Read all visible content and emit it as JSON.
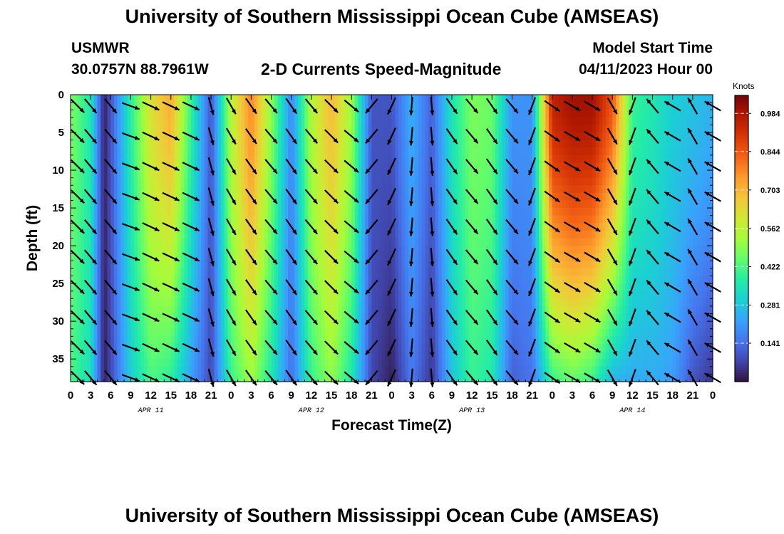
{
  "page": {
    "title": "University of Southern Mississippi Ocean Cube (AMSEAS)",
    "station_name": "USMWR",
    "station_coords": "30.0757N  88.7961W",
    "plot_title": "2-D Currents Speed-Magnitude",
    "model_start_label": "Model Start Time",
    "model_start_value": "04/11/2023 Hour 00",
    "footer_title": "University of Southern Mississippi Ocean Cube (AMSEAS)"
  },
  "chart_data": {
    "type": "heatmap",
    "title": "2-D Currents Speed-Magnitude",
    "xlabel": "Forecast Time(Z)",
    "ylabel": "Depth (ft)",
    "x_unit": "hours since 04/11/2023 00Z",
    "xlim": [
      0,
      96
    ],
    "ylim": [
      0,
      38
    ],
    "y_inverted": true,
    "x_tick_values": [
      0,
      3,
      6,
      9,
      12,
      15,
      18,
      21,
      24,
      27,
      30,
      33,
      36,
      39,
      42,
      45,
      48,
      51,
      54,
      57,
      60,
      63,
      66,
      69,
      72,
      75,
      78,
      81,
      84,
      87,
      90,
      93,
      96
    ],
    "x_tick_labels": [
      "0",
      "3",
      "6",
      "9",
      "12",
      "15",
      "18",
      "21",
      "0",
      "3",
      "6",
      "9",
      "12",
      "15",
      "18",
      "21",
      "0",
      "3",
      "6",
      "9",
      "12",
      "15",
      "18",
      "21",
      "0",
      "3",
      "6",
      "9",
      "12",
      "15",
      "18",
      "21",
      "0"
    ],
    "date_labels": [
      {
        "hour": 12,
        "label": "APR 11"
      },
      {
        "hour": 36,
        "label": "APR 12"
      },
      {
        "hour": 60,
        "label": "APR 13"
      },
      {
        "hour": 84,
        "label": "APR 14"
      }
    ],
    "y_tick_values": [
      0,
      5,
      10,
      15,
      20,
      25,
      30,
      35
    ],
    "y_tick_labels": [
      "0",
      "5",
      "10",
      "15",
      "20",
      "25",
      "30",
      "35"
    ],
    "colorbar": {
      "unit_label": "Knots",
      "min": 0,
      "max": 1.05,
      "tick_values": [
        0.984,
        0.844,
        0.703,
        0.562,
        0.422,
        0.281,
        0.141
      ],
      "tick_labels": [
        "0.984",
        "0.844",
        "0.703",
        "0.562",
        "0.422",
        "0.281",
        "0.141"
      ],
      "colormap": [
        "#30123b",
        "#4145ab",
        "#4675ed",
        "#39a2fc",
        "#1bcfd4",
        "#24eca6",
        "#61fc6c",
        "#a4fc3b",
        "#d1e834",
        "#f3c63a",
        "#fe9b2d",
        "#f36315",
        "#d93806",
        "#b11901",
        "#7a0402"
      ]
    },
    "speed_profile_surface_knots": [
      [
        0,
        0.48
      ],
      [
        3,
        0.36
      ],
      [
        5,
        0.02
      ],
      [
        6,
        0.1
      ],
      [
        9,
        0.38
      ],
      [
        12,
        0.62
      ],
      [
        15,
        0.72
      ],
      [
        18,
        0.4
      ],
      [
        21,
        0.1
      ],
      [
        24,
        0.56
      ],
      [
        27,
        0.78
      ],
      [
        30,
        0.5
      ],
      [
        33,
        0.18
      ],
      [
        36,
        0.55
      ],
      [
        39,
        0.7
      ],
      [
        42,
        0.52
      ],
      [
        45,
        0.1
      ],
      [
        48,
        0.1
      ],
      [
        51,
        0.25
      ],
      [
        54,
        0.12
      ],
      [
        57,
        0.35
      ],
      [
        60,
        0.48
      ],
      [
        63,
        0.46
      ],
      [
        66,
        0.2
      ],
      [
        69,
        0.2
      ],
      [
        72,
        0.95
      ],
      [
        75,
        1.0
      ],
      [
        78,
        1.0
      ],
      [
        81,
        0.85
      ],
      [
        84,
        0.4
      ],
      [
        87,
        0.36
      ],
      [
        90,
        0.3
      ],
      [
        93,
        0.28
      ],
      [
        96,
        0.25
      ]
    ],
    "speed_profile_bottom_knots": [
      [
        0,
        0.42
      ],
      [
        3,
        0.34
      ],
      [
        5,
        0.02
      ],
      [
        6,
        0.08
      ],
      [
        9,
        0.3
      ],
      [
        12,
        0.42
      ],
      [
        15,
        0.38
      ],
      [
        18,
        0.22
      ],
      [
        21,
        0.08
      ],
      [
        24,
        0.4
      ],
      [
        27,
        0.52
      ],
      [
        30,
        0.36
      ],
      [
        33,
        0.14
      ],
      [
        36,
        0.4
      ],
      [
        39,
        0.5
      ],
      [
        42,
        0.36
      ],
      [
        45,
        0.08
      ],
      [
        48,
        0.02
      ],
      [
        51,
        0.16
      ],
      [
        54,
        0.05
      ],
      [
        57,
        0.28
      ],
      [
        60,
        0.4
      ],
      [
        63,
        0.36
      ],
      [
        66,
        0.12
      ],
      [
        69,
        0.15
      ],
      [
        72,
        0.4
      ],
      [
        75,
        0.45
      ],
      [
        78,
        0.4
      ],
      [
        81,
        0.25
      ],
      [
        84,
        0.24
      ],
      [
        87,
        0.24
      ],
      [
        90,
        0.22
      ],
      [
        93,
        0.1
      ],
      [
        96,
        0.05
      ]
    ],
    "vector_direction_deg_by_hour": [
      [
        0,
        135
      ],
      [
        3,
        140
      ],
      [
        5,
        200
      ],
      [
        6,
        140
      ],
      [
        9,
        110
      ],
      [
        12,
        115
      ],
      [
        15,
        115
      ],
      [
        18,
        115
      ],
      [
        21,
        165
      ],
      [
        24,
        150
      ],
      [
        27,
        145
      ],
      [
        30,
        140
      ],
      [
        33,
        145
      ],
      [
        36,
        140
      ],
      [
        39,
        135
      ],
      [
        42,
        130
      ],
      [
        45,
        220
      ],
      [
        48,
        205
      ],
      [
        51,
        185
      ],
      [
        54,
        175
      ],
      [
        57,
        145
      ],
      [
        60,
        140
      ],
      [
        63,
        145
      ],
      [
        66,
        140
      ],
      [
        69,
        200
      ],
      [
        72,
        125
      ],
      [
        75,
        120
      ],
      [
        78,
        120
      ],
      [
        81,
        150
      ],
      [
        84,
        200
      ],
      [
        87,
        320
      ],
      [
        90,
        300
      ],
      [
        93,
        330
      ],
      [
        96,
        300
      ]
    ]
  }
}
